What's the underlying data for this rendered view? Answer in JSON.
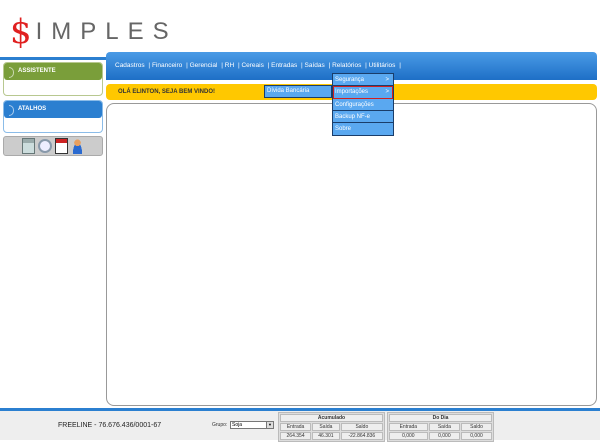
{
  "logo": {
    "dollar": "$",
    "text": "IMPLES"
  },
  "sidebar": {
    "assistente": "ASSISTENTE",
    "atalhos": "ATALHOS",
    "shortcut_icons": [
      "calculator-icon",
      "search-icon",
      "calendar-icon",
      "user-icon"
    ]
  },
  "nav": {
    "items": [
      "Cadastros",
      "Financeiro",
      "Gerencial",
      "RH",
      "Cereais",
      "Entradas",
      "Saídas",
      "Relatórios",
      "Utilitários"
    ]
  },
  "welcome": "OLÁ ELINTON, SEJA BEM VINDO!",
  "menu": {
    "items": [
      {
        "label": "Segurança",
        "arrow": ">"
      },
      {
        "label": "Importações",
        "arrow": ">"
      },
      {
        "label": "Configurações"
      },
      {
        "label": "Backup NF-e"
      },
      {
        "label": "Sobre"
      }
    ],
    "submenu": "Dívida Bancária"
  },
  "footer": {
    "firm": "FREELINE - 76.676.436/0001-67",
    "grupo_label": "Grupo:",
    "grupo_value": "Soja",
    "acumulado": {
      "title": "Acumulado",
      "headers": [
        "Entrada",
        "Saída",
        "Saldo"
      ],
      "values": [
        "264.354",
        "46.301",
        "-22.864.836"
      ]
    },
    "dodia": {
      "title": "Do Dia",
      "headers": [
        "Entrada",
        "Saída",
        "Saldo"
      ],
      "values": [
        "0,000",
        "0,000",
        "0,000"
      ]
    }
  },
  "colors": {
    "nav_blue": "#2b7fd0",
    "green": "#7a9e3a",
    "yellow": "#ffc800",
    "menu_bg": "#5aa8f0",
    "highlight": "#d02020"
  }
}
